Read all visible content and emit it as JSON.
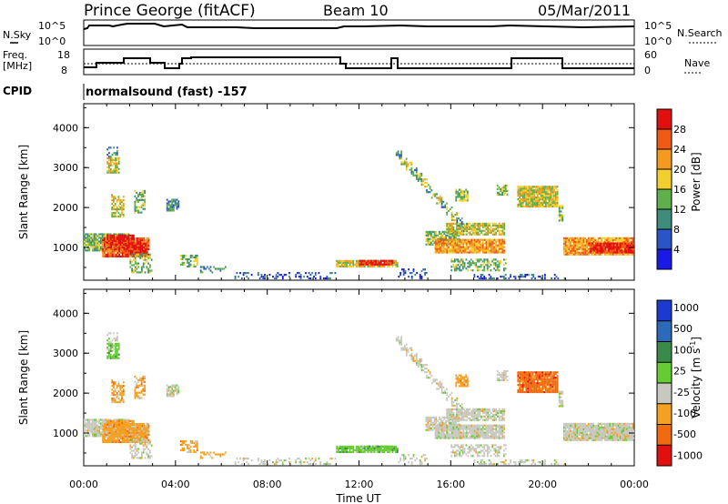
{
  "header": {
    "station": "Prince George (fitACF)",
    "beam": "Beam 10",
    "date": "05/Mar/2011"
  },
  "panels": {
    "nsky": {
      "left_label": "N.Sky",
      "right_label": "N.Search",
      "left_ticks": [
        "10^5",
        "10^0"
      ],
      "right_ticks": [
        "10^5",
        "10^0"
      ]
    },
    "freq": {
      "left_label_1": "Freq.",
      "left_label_2": "[MHz]",
      "right_label": "Nave",
      "left_ticks": [
        "18",
        "8"
      ],
      "right_ticks": [
        "60",
        "0"
      ]
    },
    "cpid": {
      "label": "CPID",
      "program": "normalsound (fast) -157"
    }
  },
  "chart_data": [
    {
      "type": "heatmap",
      "title": "Power",
      "ylabel": "Slant Range [km]",
      "xlabel": "",
      "ylim": [
        180,
        4600
      ],
      "yticks": [
        "1000",
        "2000",
        "3000",
        "4000"
      ],
      "xticks": [
        "00:00",
        "04:00",
        "08:00",
        "12:00",
        "16:00",
        "20:00",
        "00:00"
      ],
      "colorbar": {
        "label": "Power [dB]",
        "ticks": [
          "4",
          "8",
          "12",
          "16",
          "20",
          "24",
          "28"
        ],
        "colors": [
          "#1a1ae6",
          "#2a55c8",
          "#3e8c7a",
          "#5fb04a",
          "#f0cf2e",
          "#f59a1e",
          "#f05a14",
          "#e01010"
        ]
      }
    },
    {
      "type": "heatmap",
      "title": "Velocity",
      "ylabel": "Slant Range [km]",
      "xlabel": "Time UT",
      "ylim": [
        180,
        4600
      ],
      "yticks": [
        "1000",
        "2000",
        "3000",
        "4000"
      ],
      "xticks": [
        "00:00",
        "04:00",
        "08:00",
        "12:00",
        "16:00",
        "20:00",
        "00:00"
      ],
      "colorbar": {
        "label": "Velocity [m s",
        "label_sup": "-1",
        "label_end": "]",
        "ticks": [
          "1000",
          "500",
          "100",
          "25",
          "-25",
          "-100",
          "-500",
          "-1000"
        ],
        "colors": [
          "#1a3ad0",
          "#2a6ab8",
          "#3a8a4a",
          "#66cc33",
          "#c8c8c0",
          "#f5a020",
          "#f06a10",
          "#e01010"
        ]
      }
    }
  ]
}
